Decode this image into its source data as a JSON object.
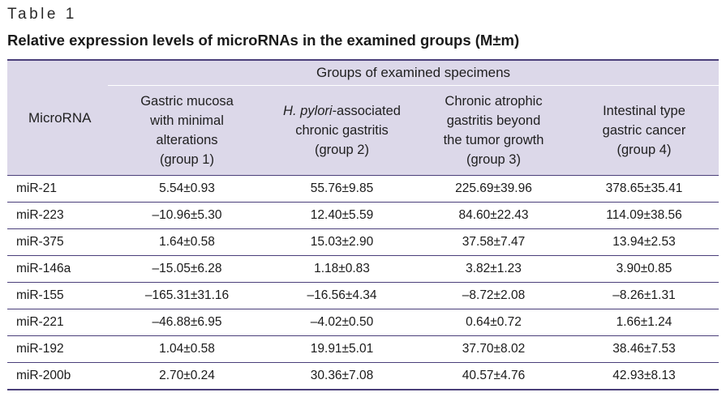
{
  "table_label": "Table 1",
  "caption": "Relative expression levels of microRNAs in the examined groups (M±m)",
  "header": {
    "first_col": "MicroRNA",
    "group_span": "Groups of examined specimens",
    "groups": [
      {
        "line1": "Gastric mucosa",
        "line2": "with minimal",
        "line3": "alterations",
        "line4": "(group 1)"
      },
      {
        "italic": "H. pylori",
        "rest": "-associated",
        "line2": "chronic gastritis",
        "line3": "(group 2)"
      },
      {
        "line1": "Chronic atrophic",
        "line2": "gastritis beyond",
        "line3": "the tumor growth",
        "line4": "(group 3)"
      },
      {
        "line1": "Intestinal type",
        "line2": "gastric cancer",
        "line3": "(group 4)"
      }
    ]
  },
  "rows": [
    {
      "name": "miR-21",
      "values": [
        "5.54±0.93",
        "55.76±9.85",
        "225.69±39.96",
        "378.65±35.41"
      ]
    },
    {
      "name": "miR-223",
      "values": [
        "–10.96±5.30",
        "12.40±5.59",
        "84.60±22.43",
        "114.09±38.56"
      ]
    },
    {
      "name": "miR-375",
      "values": [
        "1.64±0.58",
        "15.03±2.90",
        "37.58±7.47",
        "13.94±2.53"
      ]
    },
    {
      "name": "miR-146a",
      "values": [
        "–15.05±6.28",
        "1.18±0.83",
        "3.82±1.23",
        "3.90±0.85"
      ]
    },
    {
      "name": "miR-155",
      "values": [
        "–165.31±31.16",
        "–16.56±4.34",
        "–8.72±2.08",
        "–8.26±1.31"
      ]
    },
    {
      "name": "miR-221",
      "values": [
        "–46.88±6.95",
        "–4.02±0.50",
        "0.64±0.72",
        "1.66±1.24"
      ]
    },
    {
      "name": "miR-192",
      "values": [
        "1.04±0.58",
        "19.91±5.01",
        "37.70±8.02",
        "38.46±7.53"
      ]
    },
    {
      "name": "miR-200b",
      "values": [
        "2.70±0.24",
        "30.36±7.08",
        "40.57±4.76",
        "42.93±8.13"
      ]
    }
  ]
}
